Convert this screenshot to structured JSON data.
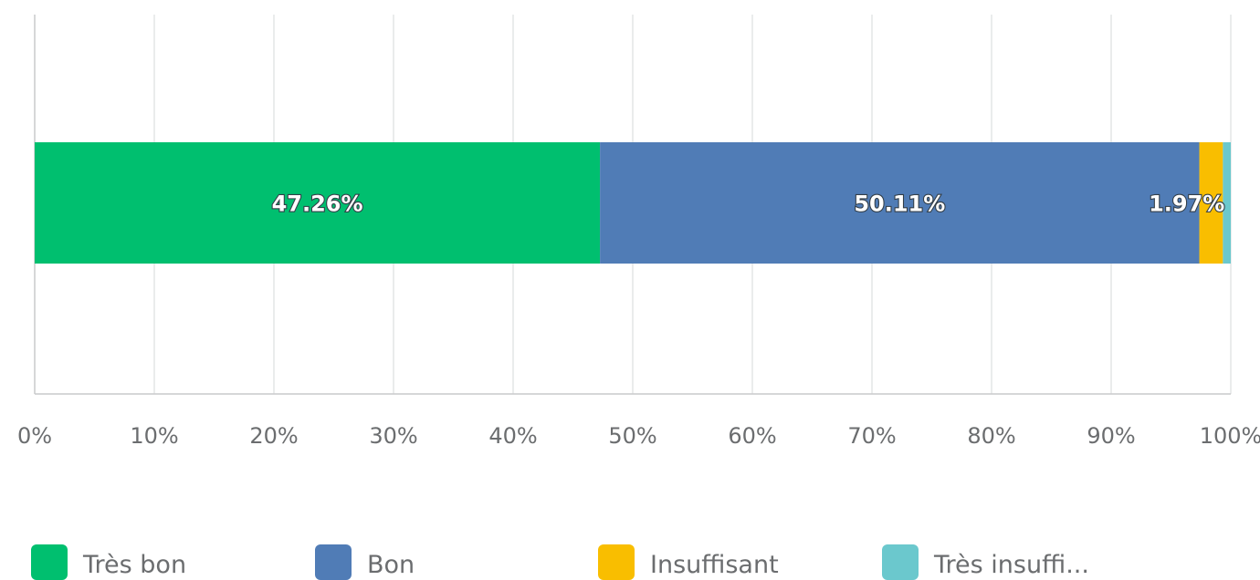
{
  "chart_data": {
    "type": "bar",
    "orientation": "horizontal",
    "stacked": true,
    "categories": [
      ""
    ],
    "series": [
      {
        "name": "Très bon",
        "values": [
          47.26
        ],
        "label": "47.26%",
        "color": "#00bf6f"
      },
      {
        "name": "Bon",
        "values": [
          50.11
        ],
        "label": "50.11%",
        "color": "#507cb6"
      },
      {
        "name": "Insuffisant",
        "values": [
          1.97
        ],
        "label": "1.97%",
        "color": "#f9be00"
      },
      {
        "name": "Très insuffi...",
        "values": [
          0.66
        ],
        "label": "",
        "color": "#6bc8cd"
      }
    ],
    "xticks": [
      "0%",
      "10%",
      "20%",
      "30%",
      "40%",
      "50%",
      "60%",
      "70%",
      "80%",
      "90%",
      "100%"
    ],
    "xlim": [
      0,
      100
    ],
    "grid": true,
    "legend_position": "bottom",
    "title": "",
    "xlabel": "",
    "ylabel": ""
  }
}
